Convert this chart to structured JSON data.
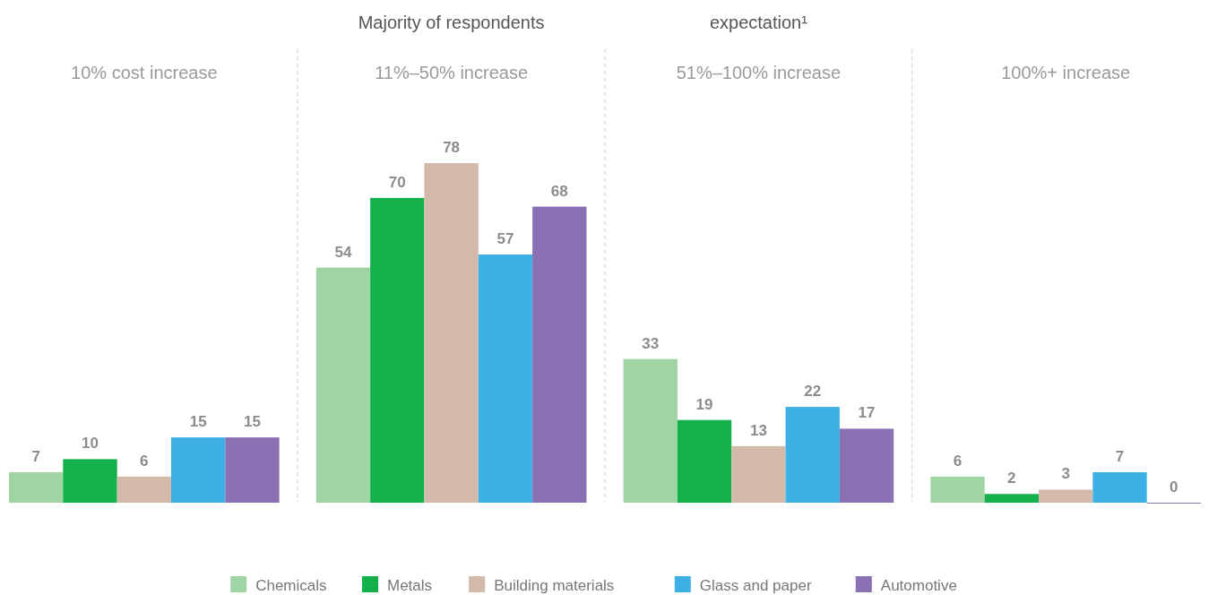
{
  "chart_data": {
    "type": "bar",
    "categories": [
      "10% cost increase",
      "11%–50% increase",
      "51%–100% increase",
      "100%+ increase"
    ],
    "series": [
      {
        "name": "Chemicals",
        "color": "#a0d4a4",
        "values": [
          7,
          54,
          33,
          6
        ]
      },
      {
        "name": "Metals",
        "color": "#14b04c",
        "values": [
          10,
          70,
          19,
          2
        ]
      },
      {
        "name": "Building materials",
        "color": "#d3b9aa",
        "values": [
          6,
          78,
          13,
          3
        ]
      },
      {
        "name": "Glass and paper",
        "color": "#3db1e5",
        "values": [
          15,
          57,
          22,
          7
        ]
      },
      {
        "name": "Automotive",
        "color": "#8a71b4",
        "values": [
          15,
          68,
          17,
          0
        ]
      }
    ],
    "annotations": [
      "Majority of respondents",
      "expectation¹"
    ],
    "data_labels": true,
    "legend": "bottom"
  }
}
